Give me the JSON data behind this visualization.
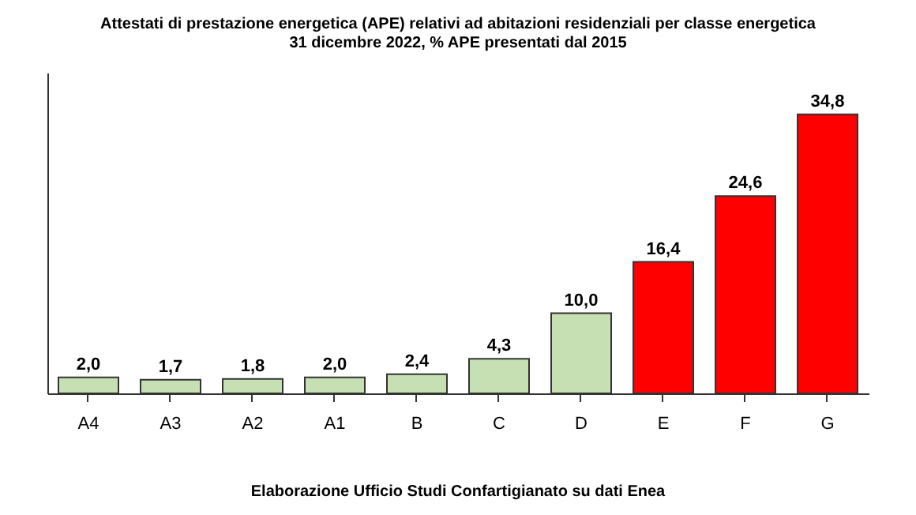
{
  "chart_data": {
    "type": "bar",
    "title": "Attestati  di prestazione energetica (APE) relativi ad abitazioni residenziali per classe energetica",
    "subtitle": "31 dicembre 2022, % APE presentati dal 2015",
    "categories": [
      "A4",
      "A3",
      "A2",
      "A1",
      "B",
      "C",
      "D",
      "E",
      "F",
      "G"
    ],
    "values": [
      2.0,
      1.7,
      1.8,
      2.0,
      2.4,
      4.3,
      10.0,
      16.4,
      24.6,
      34.8
    ],
    "value_labels": [
      "2,0",
      "1,7",
      "1,8",
      "2,0",
      "2,4",
      "4,3",
      "10,0",
      "16,4",
      "24,6",
      "34,8"
    ],
    "colors": [
      "#c6e0b4",
      "#c6e0b4",
      "#c6e0b4",
      "#c6e0b4",
      "#c6e0b4",
      "#c6e0b4",
      "#c6e0b4",
      "#ff0000",
      "#ff0000",
      "#ff0000"
    ],
    "ylim": [
      0,
      40
    ],
    "tick_labels": "x",
    "grid": false,
    "annotations": [
      "Elaborazione Ufficio Studi Confartigianato su dati Enea"
    ]
  }
}
